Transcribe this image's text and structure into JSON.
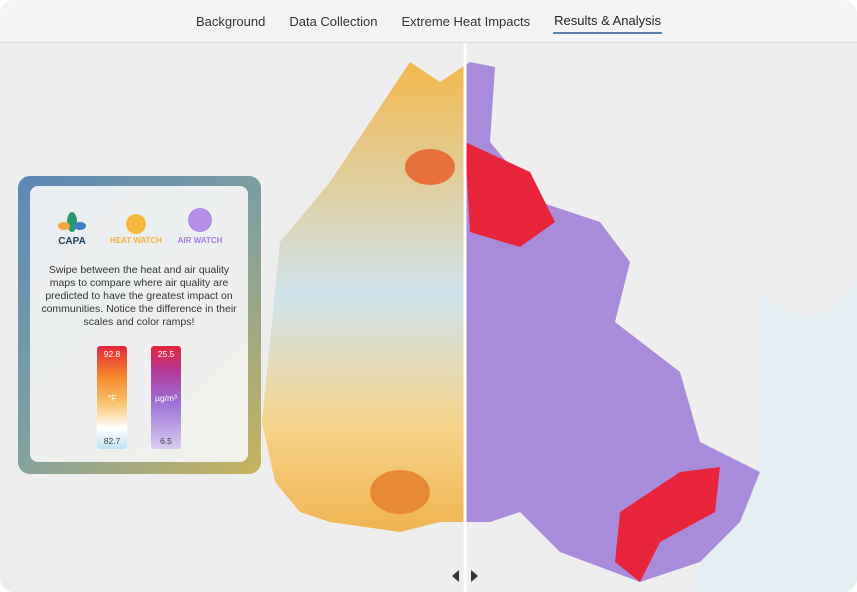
{
  "nav": {
    "items": [
      "Background",
      "Data Collection",
      "Extreme Heat Impacts",
      "Results & Analysis"
    ],
    "active": 3
  },
  "panel": {
    "logos": [
      "CAPA",
      "HEAT WATCH",
      "AIR WATCH"
    ],
    "description": "Swipe between the heat and air quality maps to compare where air quality are predicted to have the greatest impact on communities. Notice the difference in their scales and color ramps!",
    "legends": [
      {
        "max": 92.8,
        "unit": "°F",
        "min": 82.7
      },
      {
        "max": 25.5,
        "unit": "µg/m³",
        "min": 6.5
      }
    ]
  }
}
